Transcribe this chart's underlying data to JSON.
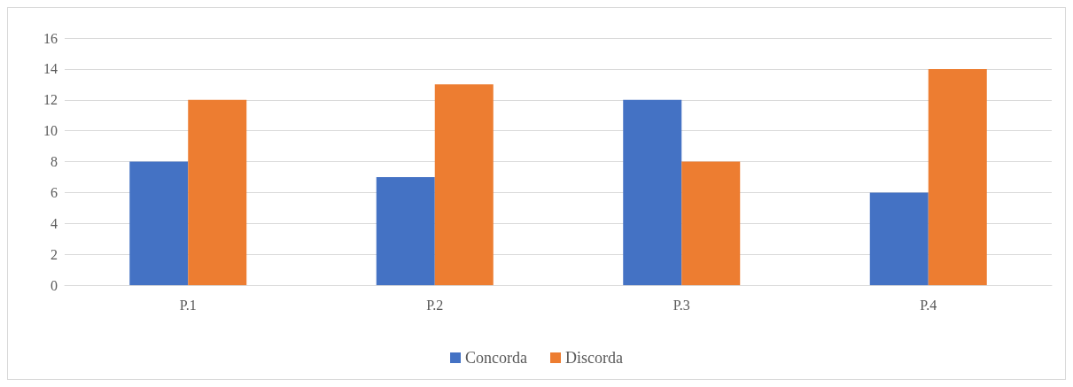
{
  "chart_data": {
    "type": "bar",
    "categories": [
      "P.1",
      "P.2",
      "P.3",
      "P.4"
    ],
    "series": [
      {
        "name": "Concorda",
        "color": "#4472c4",
        "values": [
          8,
          7,
          12,
          6
        ]
      },
      {
        "name": "Discorda",
        "color": "#ed7d31",
        "values": [
          12,
          13,
          8,
          14
        ]
      }
    ],
    "ylim": [
      0,
      16
    ],
    "yticks": [
      0,
      2,
      4,
      6,
      8,
      10,
      12,
      14,
      16
    ],
    "grid": "y",
    "legend": "bottom"
  }
}
